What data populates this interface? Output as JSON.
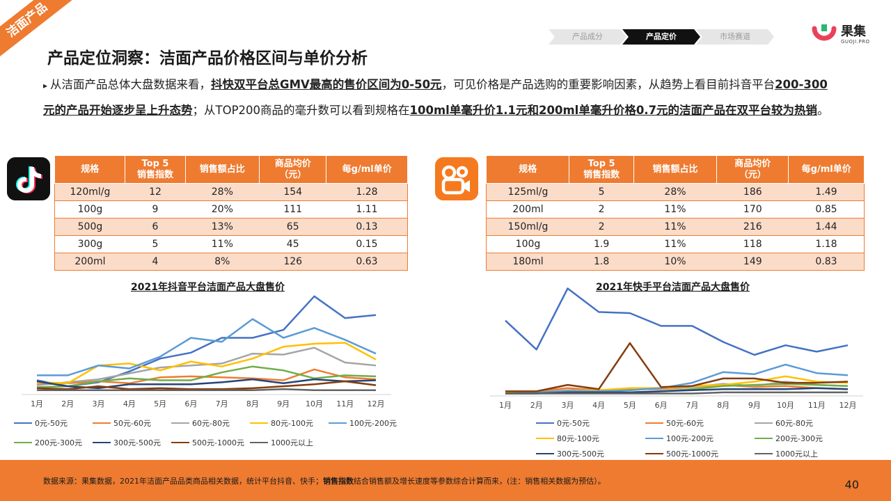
{
  "corner_tag": "洁面产品",
  "nav": [
    "产品成分",
    "产品定价",
    "市场赛道"
  ],
  "nav_active": 1,
  "logo": {
    "cn": "果集",
    "en": "GUOJI.PRO"
  },
  "title": "产品定位洞察：洁面产品价格区间与单价分析",
  "summary": {
    "p1": "从洁面产品总体大盘数据来看，",
    "b1": "抖快双平台总GMV最高的售价区间为0-50元",
    "p2": "，可见价格是产品选购的重要影响因素，从趋势上看目前抖音平台",
    "b2": "200-300元的产品开始逐步呈上升态势",
    "p3": "；从TOP200商品的毫升数可以看到规格在",
    "b3": "100ml单毫升价1.1元和200ml单毫升价格0.7元的洁面产品在双平台较为热销",
    "p4": "。"
  },
  "douyin_table": {
    "headers": [
      "规格",
      "Top 5\n销售指数",
      "销售额占比",
      "商品均价\n（元）",
      "每g/ml单价"
    ],
    "rows": [
      [
        "120ml/g",
        "12",
        "28%",
        "154",
        "1.28"
      ],
      [
        "100g",
        "9",
        "20%",
        "111",
        "1.11"
      ],
      [
        "500g",
        "6",
        "13%",
        "65",
        "0.13"
      ],
      [
        "300g",
        "5",
        "11%",
        "45",
        "0.15"
      ],
      [
        "200ml",
        "4",
        "8%",
        "126",
        "0.63"
      ]
    ]
  },
  "kuaishou_table": {
    "headers": [
      "规格",
      "Top 5\n销售指数",
      "销售额占比",
      "商品均价\n（元）",
      "每g/ml单价"
    ],
    "rows": [
      [
        "125ml/g",
        "5",
        "28%",
        "186",
        "1.49"
      ],
      [
        "200ml",
        "2",
        "11%",
        "170",
        "0.85"
      ],
      [
        "150ml/g",
        "2",
        "11%",
        "216",
        "1.44"
      ],
      [
        "100g",
        "1.9",
        "11%",
        "118",
        "1.18"
      ],
      [
        "180ml",
        "1.8",
        "10%",
        "149",
        "0.83"
      ]
    ]
  },
  "chart_data": [
    {
      "type": "line",
      "title": "2021年抖音平台洁面产品大盘售价",
      "categories": [
        "1月",
        "2月",
        "3月",
        "4月",
        "5月",
        "6月",
        "7月",
        "8月",
        "9月",
        "10月",
        "11月",
        "12月"
      ],
      "ylim": [
        0,
        100
      ],
      "grid": false,
      "legend_position": "bottom",
      "series": [
        {
          "name": "0元-50元",
          "color": "#4472C4",
          "values": [
            13,
            7,
            11,
            22,
            35,
            41,
            56,
            56,
            64,
            98,
            76,
            79
          ]
        },
        {
          "name": "50元-60元",
          "color": "#ED7D31",
          "values": [
            9,
            10,
            12,
            10,
            16,
            17,
            16,
            15,
            13,
            24,
            16,
            14
          ]
        },
        {
          "name": "60元-80元",
          "color": "#A5A5A5",
          "values": [
            8,
            11,
            14,
            20,
            26,
            28,
            30,
            40,
            39,
            46,
            31,
            28
          ]
        },
        {
          "name": "80元-100元",
          "color": "#FFC000",
          "values": [
            11,
            10,
            28,
            30,
            23,
            32,
            27,
            35,
            47,
            50,
            51,
            34
          ]
        },
        {
          "name": "100元-200元",
          "color": "#5B9BD5",
          "values": [
            18,
            18,
            28,
            25,
            37,
            56,
            52,
            75,
            56,
            66,
            54,
            40
          ]
        },
        {
          "name": "200元-300元",
          "color": "#70AD47",
          "values": [
            6,
            7,
            12,
            15,
            13,
            13,
            21,
            27,
            23,
            15,
            18,
            17
          ]
        },
        {
          "name": "300元-500元",
          "color": "#264478",
          "values": [
            12,
            7,
            5,
            9,
            9,
            9,
            11,
            14,
            10,
            14,
            12,
            13
          ]
        },
        {
          "name": "500元-1000元",
          "color": "#843C0C",
          "values": [
            5,
            4,
            7,
            4,
            5,
            4,
            4,
            5,
            7,
            9,
            12,
            8
          ]
        },
        {
          "name": "1000元以上",
          "color": "#636363",
          "values": [
            3,
            3,
            3,
            3,
            3,
            3,
            3,
            3,
            4,
            3,
            3,
            3
          ]
        }
      ]
    },
    {
      "type": "line",
      "title": "2021年快手平台洁面产品大盘售价",
      "categories": [
        "1月",
        "2月",
        "3月",
        "4月",
        "5月",
        "6月",
        "7月",
        "8月",
        "9月",
        "10月",
        "11月",
        "12月"
      ],
      "ylim": [
        0,
        100
      ],
      "grid": false,
      "legend_position": "bottom",
      "series": [
        {
          "name": "0元-50元",
          "color": "#4472C4",
          "values": [
            69,
            42,
            99,
            77,
            76,
            64,
            64,
            49,
            37,
            46,
            40,
            46
          ]
        },
        {
          "name": "50元-60元",
          "color": "#ED7D31",
          "values": [
            3,
            3,
            6,
            4,
            5,
            5,
            7,
            9,
            7,
            8,
            6,
            5
          ]
        },
        {
          "name": "60元-80元",
          "color": "#A5A5A5",
          "values": [
            2,
            2,
            4,
            4,
            4,
            6,
            7,
            10,
            8,
            12,
            9,
            8
          ]
        },
        {
          "name": "80元-100元",
          "color": "#FFC000",
          "values": [
            2,
            2,
            3,
            4,
            6,
            6,
            8,
            9,
            12,
            17,
            12,
            11
          ]
        },
        {
          "name": "100元-200元",
          "color": "#5B9BD5",
          "values": [
            1,
            2,
            3,
            3,
            4,
            6,
            11,
            21,
            19,
            28,
            20,
            18
          ]
        },
        {
          "name": "200元-300元",
          "color": "#70AD47",
          "values": [
            1,
            1,
            2,
            2,
            2,
            3,
            5,
            8,
            9,
            10,
            9,
            8
          ]
        },
        {
          "name": "300元-500元",
          "color": "#264478",
          "values": [
            1,
            1,
            2,
            2,
            2,
            3,
            4,
            5,
            5,
            5,
            6,
            5
          ]
        },
        {
          "name": "500元-1000元",
          "color": "#843C0C",
          "values": [
            3,
            3,
            9,
            5,
            48,
            7,
            8,
            15,
            15,
            11,
            11,
            12
          ]
        },
        {
          "name": "1000元以上",
          "color": "#636363",
          "values": [
            1,
            1,
            1,
            1,
            1,
            1,
            1,
            2,
            2,
            2,
            2,
            2
          ]
        }
      ]
    }
  ],
  "footer": {
    "text1": "数据来源：果集数据，2021年洁面产品品类商品相关数据，统计平台抖音、快手；",
    "bold": "销售指数",
    "text2": "结合销售额及增长速度等参数综合计算而来，(注：销售相关数据为预估）。",
    "page": "40"
  }
}
